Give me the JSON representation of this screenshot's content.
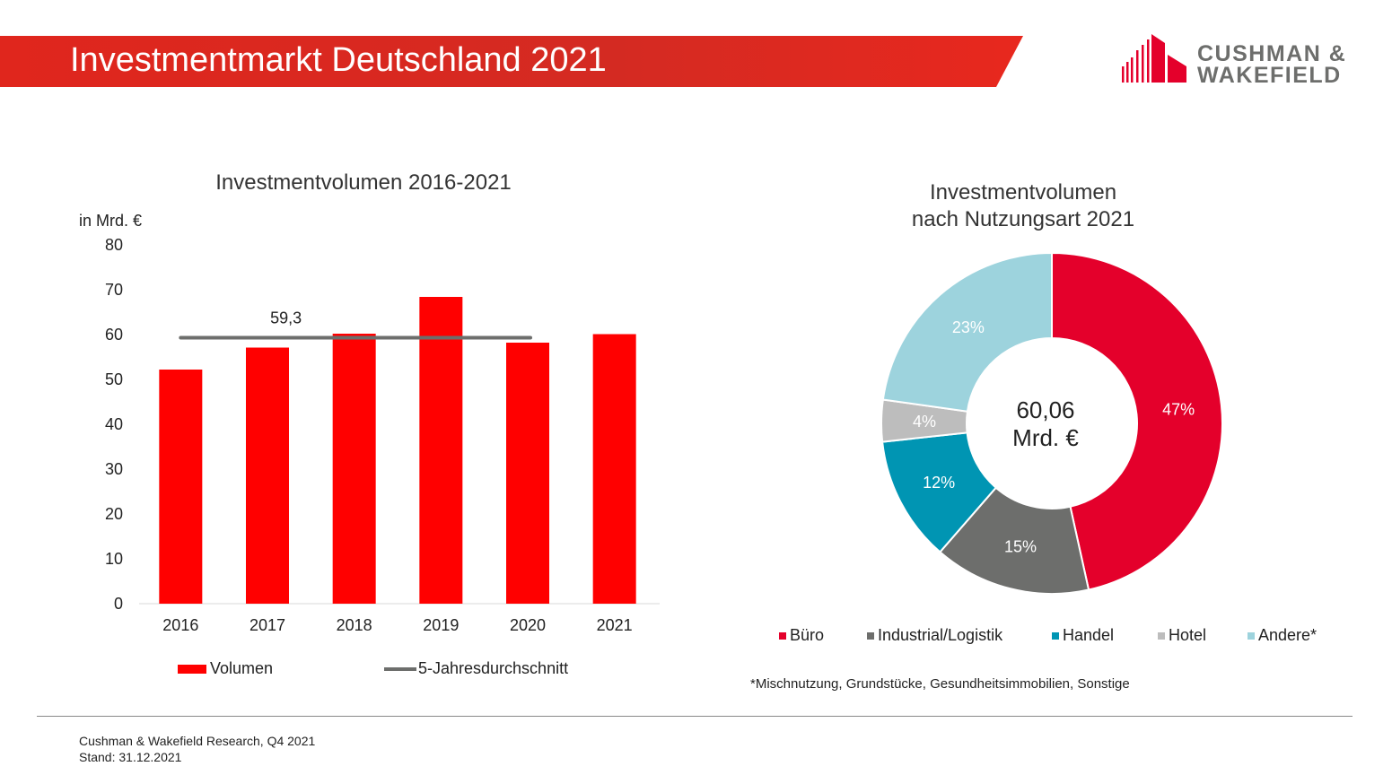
{
  "header": {
    "title": "Investmentmarkt Deutschland 2021",
    "brand_color": "#E4002B",
    "logo_line1": "CUSHMAN &",
    "logo_line2": "WAKEFIELD"
  },
  "chart_data": [
    {
      "type": "bar",
      "title": "Investmentvolumen 2016-2021",
      "ylabel": "in Mrd. €",
      "ylim": [
        0,
        80
      ],
      "yticks": [
        "0",
        "10",
        "20",
        "30",
        "40",
        "50",
        "60",
        "70",
        "80"
      ],
      "categories": [
        "2016",
        "2017",
        "2018",
        "2019",
        "2020",
        "2021"
      ],
      "series": [
        {
          "name": "Volumen",
          "values": [
            52.2,
            57.1,
            60.2,
            68.4,
            58.2,
            60.1
          ],
          "color": "#FF0000"
        }
      ],
      "reference_line": {
        "name": "5-Jahresdurchschnitt",
        "value": 59.3,
        "label": "59,3",
        "span": [
          "2016",
          "2020"
        ],
        "color": "#6D6E6C"
      },
      "legend": "bottom",
      "grid": false
    },
    {
      "type": "pie",
      "donut": true,
      "title_line1": "Investmentvolumen",
      "title_line2": "nach Nutzungsart 2021",
      "center_line1": "60,06",
      "center_line2": "Mrd. €",
      "slices": [
        {
          "name": "Büro",
          "value": 47,
          "label": "47%",
          "color": "#E4002B"
        },
        {
          "name": "Industrial/Logistik",
          "value": 15,
          "label": "15%",
          "color": "#6D6E6C"
        },
        {
          "name": "Handel",
          "value": 12,
          "label": "12%",
          "color": "#0095B3"
        },
        {
          "name": "Hotel",
          "value": 4,
          "label": "4%",
          "color": "#BDBDBD"
        },
        {
          "name": "Andere*",
          "value": 23,
          "label": "23%",
          "color": "#9DD3DD"
        }
      ],
      "legend": "bottom",
      "footnote": "*Mischnutzung, Grundstücke, Gesundheitsimmobilien, Sonstige"
    }
  ],
  "footer": {
    "source": "Cushman & Wakefield Research, Q4 2021",
    "date": "Stand: 31.12.2021"
  }
}
